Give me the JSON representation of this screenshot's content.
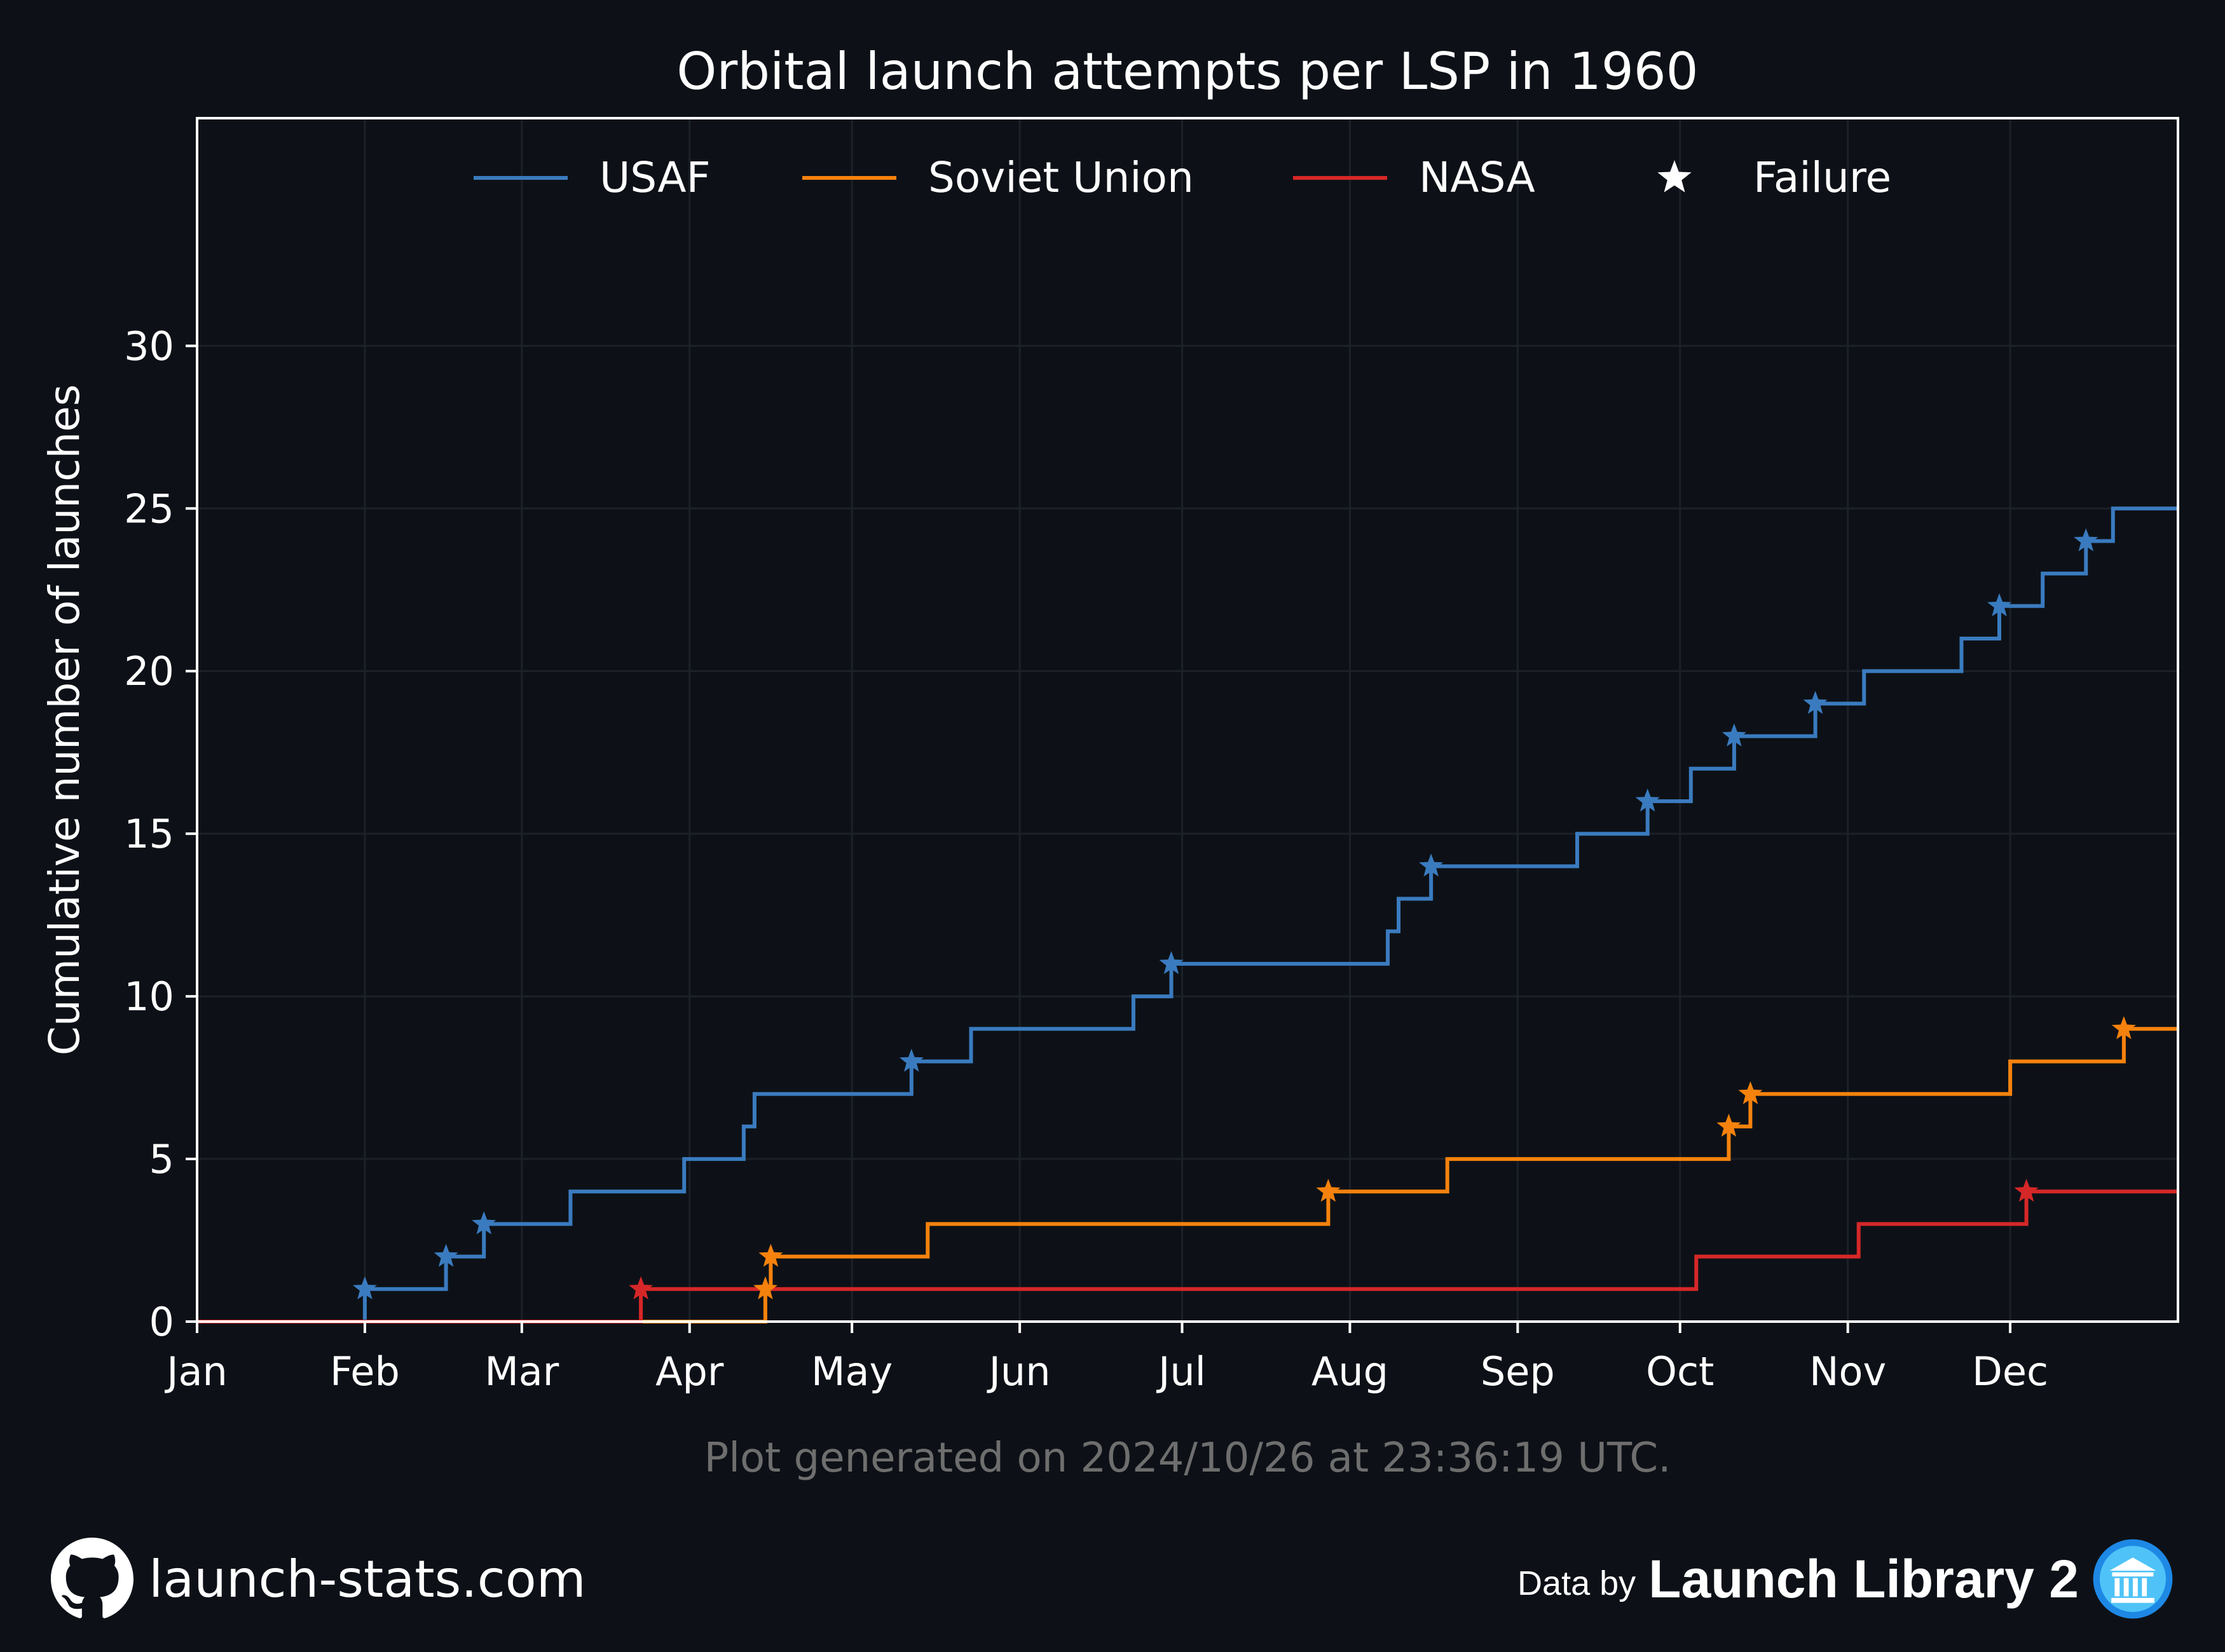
{
  "chart_data": {
    "type": "line",
    "step": true,
    "title": "Orbital launch attempts per LSP in 1960",
    "ylabel": "Cumulative number of launches",
    "xlabel": "",
    "xlim": [
      "1960-01-01",
      "1961-01-01"
    ],
    "ylim": [
      0,
      37
    ],
    "x_ticks": [
      {
        "date": "1960-01-01",
        "label": "Jan"
      },
      {
        "date": "1960-02-01",
        "label": "Feb"
      },
      {
        "date": "1960-03-01",
        "label": "Mar"
      },
      {
        "date": "1960-04-01",
        "label": "Apr"
      },
      {
        "date": "1960-05-01",
        "label": "May"
      },
      {
        "date": "1960-06-01",
        "label": "Jun"
      },
      {
        "date": "1960-07-01",
        "label": "Jul"
      },
      {
        "date": "1960-08-01",
        "label": "Aug"
      },
      {
        "date": "1960-09-01",
        "label": "Sep"
      },
      {
        "date": "1960-10-01",
        "label": "Oct"
      },
      {
        "date": "1960-11-01",
        "label": "Nov"
      },
      {
        "date": "1960-12-01",
        "label": "Dec"
      }
    ],
    "y_ticks": [
      0,
      5,
      10,
      15,
      20,
      25,
      30
    ],
    "grid": true,
    "legend_position": "top",
    "legend": [
      "USAF",
      "Soviet Union",
      "NASA",
      "Failure"
    ],
    "series": [
      {
        "name": "USAF",
        "color": "#3a7bbf",
        "launches": [
          {
            "date": "1960-02-01",
            "failure": true
          },
          {
            "date": "1960-02-16",
            "failure": true
          },
          {
            "date": "1960-02-23",
            "failure": true
          },
          {
            "date": "1960-03-10",
            "failure": false
          },
          {
            "date": "1960-03-31",
            "failure": false
          },
          {
            "date": "1960-04-11",
            "failure": false
          },
          {
            "date": "1960-04-13",
            "failure": false
          },
          {
            "date": "1960-05-12",
            "failure": true
          },
          {
            "date": "1960-05-23",
            "failure": false
          },
          {
            "date": "1960-06-22",
            "failure": false
          },
          {
            "date": "1960-06-29",
            "failure": true
          },
          {
            "date": "1960-08-08",
            "failure": false
          },
          {
            "date": "1960-08-10",
            "failure": false
          },
          {
            "date": "1960-08-16",
            "failure": true
          },
          {
            "date": "1960-09-12",
            "failure": false
          },
          {
            "date": "1960-09-25",
            "failure": true
          },
          {
            "date": "1960-10-03",
            "failure": false
          },
          {
            "date": "1960-10-11",
            "failure": true
          },
          {
            "date": "1960-10-26",
            "failure": true
          },
          {
            "date": "1960-11-04",
            "failure": false
          },
          {
            "date": "1960-11-22",
            "failure": false
          },
          {
            "date": "1960-11-29",
            "failure": true
          },
          {
            "date": "1960-12-07",
            "failure": false
          },
          {
            "date": "1960-12-15",
            "failure": true
          },
          {
            "date": "1960-12-20",
            "failure": false
          }
        ]
      },
      {
        "name": "Soviet Union",
        "color": "#f5820d",
        "launches": [
          {
            "date": "1960-04-15",
            "failure": true
          },
          {
            "date": "1960-04-16",
            "failure": true
          },
          {
            "date": "1960-05-15",
            "failure": false
          },
          {
            "date": "1960-07-28",
            "failure": true
          },
          {
            "date": "1960-08-19",
            "failure": false
          },
          {
            "date": "1960-10-10",
            "failure": true
          },
          {
            "date": "1960-10-14",
            "failure": true
          },
          {
            "date": "1960-12-01",
            "failure": false
          },
          {
            "date": "1960-12-22",
            "failure": true
          }
        ]
      },
      {
        "name": "NASA",
        "color": "#d62728",
        "launches": [
          {
            "date": "1960-03-23",
            "failure": true
          },
          {
            "date": "1960-10-04",
            "failure": false
          },
          {
            "date": "1960-11-03",
            "failure": false
          },
          {
            "date": "1960-12-04",
            "failure": true
          }
        ]
      }
    ]
  },
  "footer": {
    "generated": "Plot generated on 2024/10/26 at 23:36:19 UTC.",
    "site": "launch-stats.com",
    "site_icon": "github-icon",
    "data_by": "Data by",
    "brand": "Launch Library 2",
    "brand_icon": "library-icon"
  },
  "colors": {
    "background": "#0d1117",
    "axes": "#ffffff",
    "grid": "#1c2129",
    "muted_text": "#6e6e6e"
  }
}
